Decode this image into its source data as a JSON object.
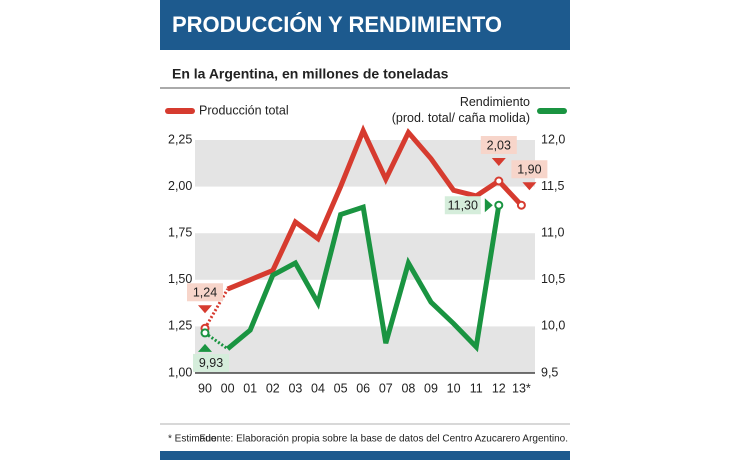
{
  "title": "PRODUCCIÓN Y RENDIMIENTO",
  "footnote": "* Estimado",
  "source": "Fuente: Elaboración propia sobre la base de datos del Centro Azucarero Argentino.",
  "chart_data": {
    "type": "line",
    "subtitle": "En la Argentina, en millones de toneladas",
    "categories": [
      "90",
      "00",
      "01",
      "02",
      "03",
      "04",
      "05",
      "06",
      "07",
      "08",
      "09",
      "10",
      "11",
      "12",
      "13*"
    ],
    "ylim": [
      1.0,
      2.25
    ],
    "yticks": [
      {
        "value": 1.0,
        "label": "1,00"
      },
      {
        "value": 1.25,
        "label": "1,25"
      },
      {
        "value": 1.5,
        "label": "1,50"
      },
      {
        "value": 1.75,
        "label": "1,75"
      },
      {
        "value": 2.0,
        "label": "2,00"
      },
      {
        "value": 2.25,
        "label": "2,25"
      }
    ],
    "y2lim": [
      9.5,
      12.0
    ],
    "y2ticks": [
      {
        "value": 9.5,
        "label": "9,5"
      },
      {
        "value": 10.0,
        "label": "10,0"
      },
      {
        "value": 10.5,
        "label": "10,5"
      },
      {
        "value": 11.0,
        "label": "11,0"
      },
      {
        "value": 11.5,
        "label": "11,5"
      },
      {
        "value": 12.0,
        "label": "12,0"
      }
    ],
    "series": [
      {
        "name": "Producción total",
        "color": "#d63b2f",
        "values": [
          1.24,
          1.45,
          1.5,
          1.55,
          1.81,
          1.72,
          2.0,
          2.3,
          2.04,
          2.29,
          2.15,
          1.98,
          1.95,
          2.03,
          1.9
        ],
        "value_labels": [
          "1,24",
          null,
          null,
          null,
          null,
          null,
          null,
          null,
          null,
          null,
          null,
          null,
          null,
          "2,03",
          "1,90"
        ]
      },
      {
        "name": "Rendimiento\n(prod. total/ caña molida)",
        "color": "#1a9441",
        "axis": "y2",
        "values": [
          9.93,
          9.76,
          9.96,
          10.55,
          10.68,
          10.25,
          11.2,
          11.28,
          9.82,
          10.68,
          10.26,
          10.03,
          9.78,
          11.3,
          null
        ],
        "value_labels": [
          "9,93",
          null,
          null,
          null,
          null,
          null,
          null,
          null,
          null,
          null,
          null,
          null,
          null,
          "11,30",
          null
        ]
      }
    ]
  }
}
